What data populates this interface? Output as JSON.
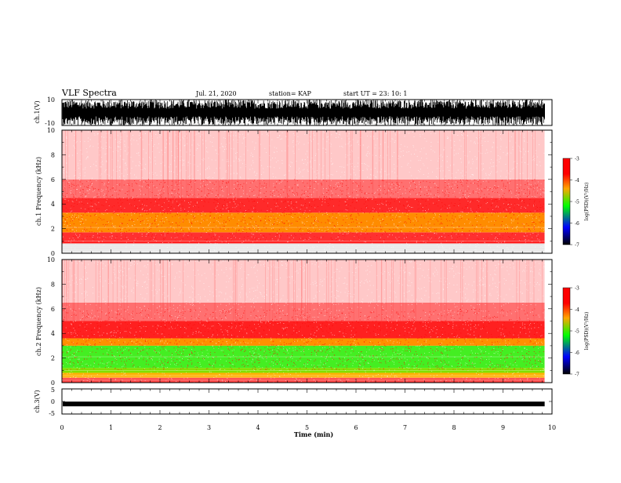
{
  "header": {
    "title": "VLF Spectra",
    "date": "Jul. 21, 2020",
    "station": "station= KAP",
    "start": "start UT = 23: 10: 1"
  },
  "colorbar": {
    "label": "log(PSD)(V²/Hz)",
    "ticks": [
      "-3",
      "-4",
      "-5",
      "-6",
      "-7"
    ],
    "colors": [
      "#ff0000",
      "#ffa500",
      "#00ff00",
      "#0000ff",
      "#000000"
    ]
  },
  "chart_data": [
    {
      "type": "line",
      "name": "ch1-waveform",
      "ylabel": "ch.1(V)",
      "ylim": [
        -10,
        10
      ],
      "ytick_labels": [
        "10",
        "-10"
      ],
      "xlim": [
        0,
        10
      ],
      "data_end_min": 9.85,
      "trace_color": "#000000",
      "description_fill": "dense saturated noise spanning most of range"
    },
    {
      "type": "heatmap",
      "name": "ch1-spectrogram",
      "ylabel": "ch.1 Frequency (kHz)",
      "ylim": [
        0,
        10
      ],
      "ytick_labels": [
        "0",
        "2",
        "4",
        "6",
        "8",
        "10"
      ],
      "xlim": [
        0,
        10
      ],
      "data_end_min": 9.85,
      "bands": [
        {
          "f0": 0.0,
          "f1": 0.8,
          "color": "#e8e8e8"
        },
        {
          "f0": 0.8,
          "f1": 1.0,
          "color": "#ff2020"
        },
        {
          "f0": 1.0,
          "f1": 1.7,
          "color": "#ff3030"
        },
        {
          "f0": 1.7,
          "f1": 3.3,
          "color": "#ff8c00"
        },
        {
          "f0": 3.3,
          "f1": 4.5,
          "color": "#ff2a2a"
        },
        {
          "f0": 4.5,
          "f1": 6.0,
          "color": "#ff7070"
        },
        {
          "f0": 6.0,
          "f1": 10.0,
          "color": "#ffc8c8"
        }
      ]
    },
    {
      "type": "heatmap",
      "name": "ch2-spectrogram",
      "ylabel": "ch.2 Frequency (kHz)",
      "ylim": [
        0,
        10
      ],
      "ytick_labels": [
        "0",
        "2",
        "4",
        "6",
        "8",
        "10"
      ],
      "xlim": [
        0,
        10
      ],
      "data_end_min": 9.85,
      "bands": [
        {
          "f0": 0.0,
          "f1": 0.4,
          "color": "#ff4040"
        },
        {
          "f0": 0.4,
          "f1": 0.8,
          "color": "#ffb000"
        },
        {
          "f0": 0.8,
          "f1": 1.2,
          "color": "#80e000"
        },
        {
          "f0": 1.2,
          "f1": 3.0,
          "color": "#44ee22"
        },
        {
          "f0": 3.0,
          "f1": 3.6,
          "color": "#ff9000"
        },
        {
          "f0": 3.6,
          "f1": 5.0,
          "color": "#ff2020"
        },
        {
          "f0": 5.0,
          "f1": 6.5,
          "color": "#ff7070"
        },
        {
          "f0": 6.5,
          "f1": 10.0,
          "color": "#ffc8c8"
        }
      ]
    },
    {
      "type": "line",
      "name": "ch3-waveform",
      "ylabel": "ch.3(V)",
      "ylim": [
        -5,
        5
      ],
      "ytick_labels": [
        "5",
        "0",
        "-5"
      ],
      "xlim": [
        0,
        10
      ],
      "data_end_min": 9.85,
      "level": -1.0,
      "trace_color": "#000000"
    }
  ],
  "xaxis": {
    "label": "Time (min)",
    "ticks": [
      "0",
      "1",
      "2",
      "3",
      "4",
      "5",
      "6",
      "7",
      "8",
      "9",
      "10"
    ]
  }
}
